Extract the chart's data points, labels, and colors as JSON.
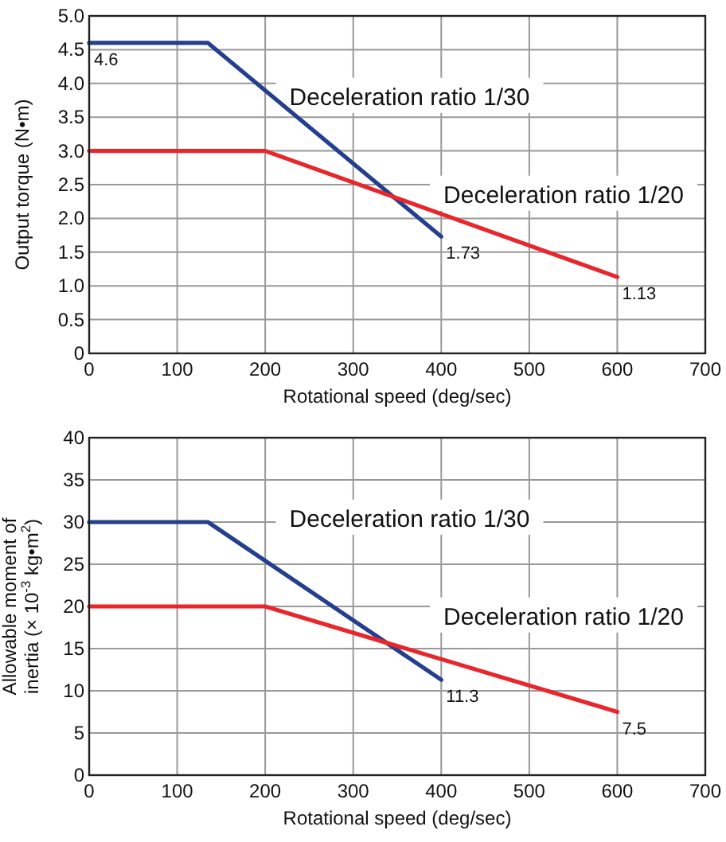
{
  "chart_data": [
    {
      "type": "line",
      "xlabel": "Rotational speed (deg/sec)",
      "ylabel": "Output torque (N•m)",
      "xlim": [
        0,
        700
      ],
      "xticks": [
        0,
        100,
        200,
        300,
        400,
        500,
        600,
        700
      ],
      "ylim": [
        0,
        5
      ],
      "yticks": [
        {
          "value": 0,
          "label": "0"
        },
        {
          "value": 0.5,
          "label": "0.5"
        },
        {
          "value": 1,
          "label": "1.0"
        },
        {
          "value": 1.5,
          "label": "1.5"
        },
        {
          "value": 2,
          "label": "2.0"
        },
        {
          "value": 2.5,
          "label": "2.5"
        },
        {
          "value": 3,
          "label": "3.0"
        },
        {
          "value": 3.5,
          "label": "3.5"
        },
        {
          "value": 4,
          "label": "4.0"
        },
        {
          "value": 4.5,
          "label": "4.5"
        },
        {
          "value": 5,
          "label": "5.0"
        }
      ],
      "grid": true,
      "marker": "none",
      "line_style": "solid",
      "series": [
        {
          "name": "Deceleration ratio 1/30",
          "color": "#253f8f",
          "x": [
            0,
            135,
            400
          ],
          "values": [
            4.6,
            4.6,
            1.73
          ],
          "value_labels": [
            "4.6",
            null,
            "1.73"
          ]
        },
        {
          "name": "Deceleration ratio 1/20",
          "color": "#e8262b",
          "x": [
            0,
            200,
            600
          ],
          "values": [
            3,
            3,
            1.13
          ],
          "value_labels": [
            null,
            null,
            "1.13"
          ]
        }
      ]
    },
    {
      "type": "line",
      "xlabel": "Rotational speed (deg/sec)",
      "ylabel": "Allowable moment of inertia (× 10$^{-3}$ kg•m$^{2}$)",
      "xlim": [
        0,
        700
      ],
      "xticks": [
        0,
        100,
        200,
        300,
        400,
        500,
        600,
        700
      ],
      "ylim": [
        0,
        40
      ],
      "yticks": [
        0,
        5,
        10,
        15,
        20,
        25,
        30,
        35,
        40
      ],
      "grid": true,
      "marker": "none",
      "line_style": "solid",
      "series": [
        {
          "name": "Deceleration ratio 1/30",
          "color": "#253f8f",
          "x": [
            0,
            135,
            400
          ],
          "values": [
            30,
            30,
            11.3
          ],
          "value_labels": [
            null,
            null,
            "11.3"
          ]
        },
        {
          "name": "Deceleration ratio 1/20",
          "color": "#e8262b",
          "x": [
            0,
            200,
            600
          ],
          "values": [
            20,
            20,
            7.5
          ],
          "value_labels": [
            null,
            null,
            "7.5"
          ]
        }
      ]
    }
  ]
}
